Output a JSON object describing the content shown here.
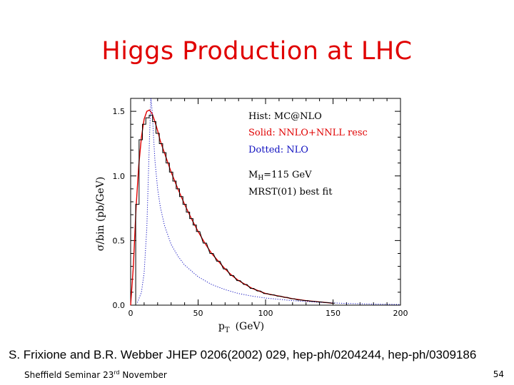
{
  "slide": {
    "title": "Higgs Production at LHC",
    "citation": "S. Frixione and B.R. Webber JHEP 0206(2002) 029, hep-ph/0204244, hep-ph/0309186",
    "footer_left_main": "Sheffield Seminar 23",
    "footer_left_sup": "rd",
    "footer_left_rest": " November",
    "page_number": "54"
  },
  "chart_data": {
    "type": "line",
    "ylabel": "σ/bin (pb/GeV)",
    "xlabel_main": "p",
    "xlabel_sub": "T",
    "xlabel_unit": "(GeV)",
    "xlim": [
      0,
      200
    ],
    "ylim": [
      0,
      1.6
    ],
    "xticks": [
      "0",
      "50",
      "100",
      "150",
      "200"
    ],
    "yticks": [
      "0.0",
      "0.5",
      "1.0",
      "1.5"
    ],
    "grid": false,
    "legend": [
      {
        "text": "Hist: MC@NLO",
        "color": "#000000"
      },
      {
        "text": "Solid: NNLO+NNLL resc",
        "color": "#e00000"
      },
      {
        "text": "Dotted: NLO",
        "color": "#1010c0"
      }
    ],
    "annotations": [
      "M_H=115 GeV",
      "MRST(01) best fit"
    ],
    "series": [
      {
        "name": "Solid: NNLO+NNLL resc",
        "style": "solid",
        "color": "#e00000",
        "x": [
          0,
          2,
          4,
          6,
          8,
          10,
          12,
          14,
          16,
          18,
          20,
          22,
          25,
          30,
          35,
          40,
          45,
          50,
          55,
          60,
          65,
          70,
          75,
          80,
          85,
          90,
          95,
          100,
          110,
          120,
          130,
          140,
          150
        ],
        "y": [
          0.0,
          0.3,
          0.75,
          1.08,
          1.3,
          1.44,
          1.5,
          1.51,
          1.48,
          1.42,
          1.35,
          1.27,
          1.18,
          1.03,
          0.9,
          0.78,
          0.67,
          0.57,
          0.48,
          0.4,
          0.34,
          0.28,
          0.23,
          0.19,
          0.16,
          0.13,
          0.11,
          0.09,
          0.07,
          0.05,
          0.035,
          0.025,
          0.015
        ]
      },
      {
        "name": "Dotted: NLO",
        "style": "dotted",
        "color": "#1010c0",
        "x": [
          5,
          8,
          10,
          12,
          13,
          14,
          15,
          16,
          17,
          18,
          20,
          22,
          25,
          30,
          35,
          40,
          50,
          60,
          70,
          80,
          90,
          100,
          120,
          140,
          160,
          180,
          200
        ],
        "y": [
          0.02,
          0.1,
          0.25,
          0.6,
          0.95,
          1.3,
          1.6,
          1.5,
          1.3,
          1.12,
          0.9,
          0.76,
          0.62,
          0.47,
          0.38,
          0.31,
          0.22,
          0.16,
          0.12,
          0.09,
          0.07,
          0.055,
          0.035,
          0.022,
          0.013,
          0.008,
          0.005
        ]
      },
      {
        "name": "Hist: MC@NLO",
        "style": "histogram",
        "color": "#000000",
        "bin_width": 2.5,
        "x": [
          5,
          7.5,
          10,
          12.5,
          15,
          17.5,
          20,
          22.5,
          25,
          27.5,
          30,
          32.5,
          35,
          37.5,
          40,
          42.5,
          45,
          47.5,
          50,
          55,
          60,
          65,
          70,
          75,
          80,
          85,
          90,
          95,
          100,
          105,
          110,
          115,
          120,
          125,
          130,
          135,
          140,
          145,
          150
        ],
        "y": [
          0.78,
          1.28,
          1.4,
          1.45,
          1.47,
          1.42,
          1.33,
          1.25,
          1.18,
          1.1,
          1.03,
          0.96,
          0.9,
          0.84,
          0.78,
          0.72,
          0.67,
          0.62,
          0.57,
          0.48,
          0.4,
          0.34,
          0.28,
          0.23,
          0.19,
          0.16,
          0.13,
          0.11,
          0.09,
          0.08,
          0.07,
          0.06,
          0.05,
          0.04,
          0.035,
          0.03,
          0.025,
          0.02,
          0.015
        ]
      }
    ]
  }
}
